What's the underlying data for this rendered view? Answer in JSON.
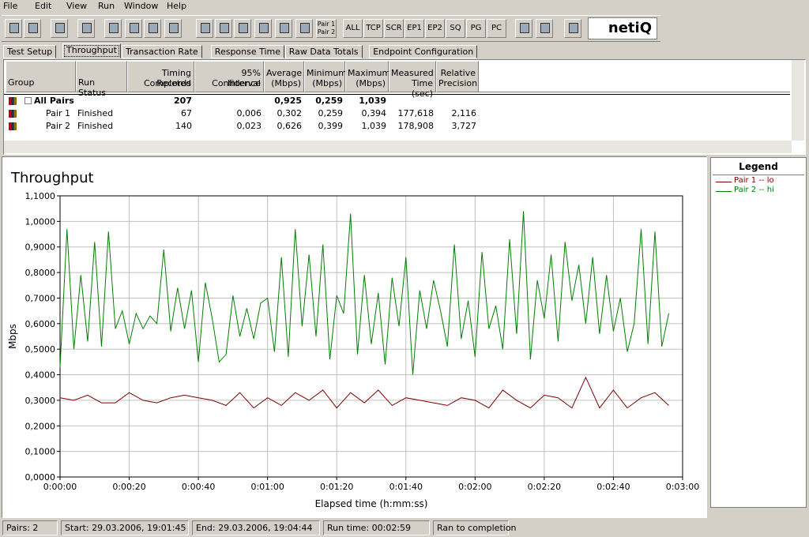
{
  "menu": [
    "File",
    "Edit",
    "View",
    "Run",
    "Window",
    "Help"
  ],
  "toolbar": {
    "pair_button": [
      "Pair 1",
      "Pair 2"
    ],
    "filters": [
      "ALL",
      "TCP",
      "SCR",
      "EP1",
      "EP2",
      "SQ",
      "PG",
      "PC"
    ],
    "logo": "netiQ"
  },
  "tabs": {
    "items": [
      "Test Setup",
      "Throughput",
      "Transaction Rate",
      "Response Time",
      "Raw Data Totals",
      "Endpoint Configuration"
    ],
    "active": 1
  },
  "table": {
    "columns": [
      [
        "Group"
      ],
      [
        "Run Status"
      ],
      [
        "Timing Records",
        "Completed"
      ],
      [
        "95% Confidence",
        "Interval"
      ],
      [
        "Average",
        "(Mbps)"
      ],
      [
        "Minimum",
        "(Mbps)"
      ],
      [
        "Maximum",
        "(Mbps)"
      ],
      [
        "Measured",
        "Time (sec)"
      ],
      [
        "Relative",
        "Precision"
      ]
    ],
    "rows": [
      [
        "All Pairs",
        null,
        "207",
        null,
        "0,925",
        "0,259",
        "1,039",
        null,
        null
      ],
      [
        "Pair 1",
        "Finished",
        "67",
        "0,006",
        "0,302",
        "0,259",
        "0,394",
        "177,618",
        "2,116"
      ],
      [
        "Pair 2",
        "Finished",
        "140",
        "0,023",
        "0,626",
        "0,399",
        "1,039",
        "178,908",
        "3,727"
      ]
    ]
  },
  "chart_data": {
    "type": "line",
    "title": "Throughput",
    "xlabel": "Elapsed time (h:mm:ss)",
    "ylabel": "Mbps",
    "grid": true,
    "xlim": [
      0,
      180
    ],
    "ylim": [
      0,
      1.1
    ],
    "xticks": [
      {
        "value": 0,
        "label": "0:00:00"
      },
      {
        "value": 20,
        "label": "0:00:20"
      },
      {
        "value": 40,
        "label": "0:00:40"
      },
      {
        "value": 60,
        "label": "0:01:00"
      },
      {
        "value": 80,
        "label": "0:01:20"
      },
      {
        "value": 100,
        "label": "0:01:40"
      },
      {
        "value": 120,
        "label": "0:02:00"
      },
      {
        "value": 140,
        "label": "0:02:20"
      },
      {
        "value": 160,
        "label": "0:02:40"
      },
      {
        "value": 180,
        "label": "0:03:00"
      }
    ],
    "yticks": [
      {
        "value": 0,
        "label": "0,0000"
      },
      {
        "value": 0.1,
        "label": "0,1000"
      },
      {
        "value": 0.2,
        "label": "0,2000"
      },
      {
        "value": 0.3,
        "label": "0,3000"
      },
      {
        "value": 0.4,
        "label": "0,4000"
      },
      {
        "value": 0.5,
        "label": "0,5000"
      },
      {
        "value": 0.6,
        "label": "0,6000"
      },
      {
        "value": 0.7,
        "label": "0,7000"
      },
      {
        "value": 0.8,
        "label": "0,8000"
      },
      {
        "value": 0.9,
        "label": "0,9000"
      },
      {
        "value": 1,
        "label": "1,0000"
      },
      {
        "value": 1.1,
        "label": "1,1000"
      }
    ],
    "legend_title": "Legend",
    "series": [
      {
        "name": "Pair 1 -- lo",
        "color": "#800000",
        "x": [
          0,
          4,
          8,
          12,
          16,
          20,
          24,
          28,
          32,
          36,
          40,
          44,
          48,
          52,
          56,
          60,
          64,
          68,
          72,
          76,
          80,
          84,
          88,
          92,
          96,
          100,
          104,
          108,
          112,
          116,
          120,
          124,
          128,
          132,
          136,
          140,
          144,
          148,
          152,
          156,
          160,
          164,
          168,
          172,
          176
        ],
        "values": [
          0.31,
          0.3,
          0.32,
          0.29,
          0.29,
          0.33,
          0.3,
          0.29,
          0.31,
          0.32,
          0.31,
          0.3,
          0.28,
          0.33,
          0.27,
          0.31,
          0.28,
          0.33,
          0.3,
          0.34,
          0.27,
          0.33,
          0.29,
          0.34,
          0.28,
          0.31,
          0.3,
          0.29,
          0.28,
          0.31,
          0.3,
          0.27,
          0.34,
          0.3,
          0.27,
          0.32,
          0.31,
          0.27,
          0.39,
          0.27,
          0.34,
          0.27,
          0.31,
          0.33,
          0.28
        ]
      },
      {
        "name": "Pair 2 -- hi",
        "color": "#008000",
        "x": [
          0,
          2,
          4,
          6,
          8,
          10,
          12,
          14,
          16,
          18,
          20,
          22,
          24,
          26,
          28,
          30,
          32,
          34,
          36,
          38,
          40,
          42,
          44,
          46,
          48,
          50,
          52,
          54,
          56,
          58,
          60,
          62,
          64,
          66,
          68,
          70,
          72,
          74,
          76,
          78,
          80,
          82,
          84,
          86,
          88,
          90,
          92,
          94,
          96,
          98,
          100,
          102,
          104,
          106,
          108,
          110,
          112,
          114,
          116,
          118,
          120,
          122,
          124,
          126,
          128,
          130,
          132,
          134,
          136,
          138,
          140,
          142,
          144,
          146,
          148,
          150,
          152,
          154,
          156,
          158,
          160,
          162,
          164,
          166,
          168,
          170,
          172,
          174,
          176
        ],
        "values": [
          0.43,
          0.97,
          0.5,
          0.79,
          0.53,
          0.92,
          0.51,
          0.96,
          0.58,
          0.65,
          0.52,
          0.64,
          0.58,
          0.63,
          0.6,
          0.89,
          0.57,
          0.74,
          0.58,
          0.73,
          0.45,
          0.76,
          0.62,
          0.45,
          0.48,
          0.71,
          0.55,
          0.66,
          0.54,
          0.68,
          0.7,
          0.49,
          0.86,
          0.47,
          0.97,
          0.59,
          0.87,
          0.55,
          0.91,
          0.46,
          0.71,
          0.64,
          1.03,
          0.48,
          0.79,
          0.52,
          0.72,
          0.44,
          0.78,
          0.59,
          0.86,
          0.4,
          0.73,
          0.58,
          0.77,
          0.65,
          0.51,
          0.91,
          0.54,
          0.69,
          0.47,
          0.88,
          0.58,
          0.67,
          0.5,
          0.93,
          0.56,
          1.04,
          0.46,
          0.77,
          0.62,
          0.87,
          0.53,
          0.92,
          0.69,
          0.83,
          0.6,
          0.86,
          0.56,
          0.79,
          0.57,
          0.7,
          0.49,
          0.6,
          0.97,
          0.52,
          0.96,
          0.51,
          0.64
        ]
      }
    ]
  },
  "status": [
    "Pairs: 2",
    "Start: 29.03.2006, 19:01:45",
    "End: 29.03.2006, 19:04:44",
    "Run time: 00:02:59",
    "Ran to completion"
  ]
}
